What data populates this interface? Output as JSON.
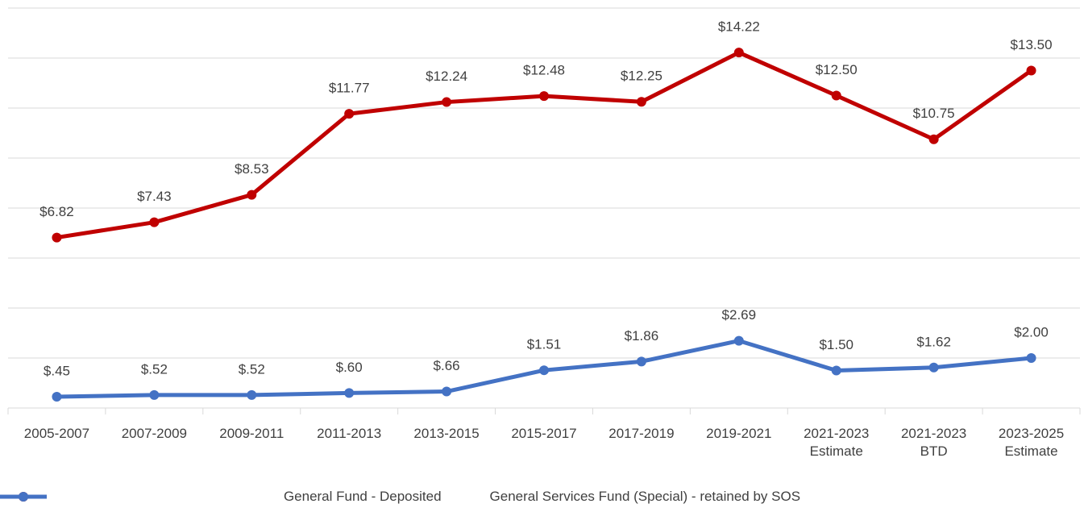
{
  "chart_data": {
    "type": "line",
    "categories": [
      "2005-2007",
      "2007-2009",
      "2009-2011",
      "2011-2013",
      "2013-2015",
      "2015-2017",
      "2017-2019",
      "2019-2021",
      "2021-2023 Estimate",
      "2021-2023 BTD",
      "2023-2025 Estimate"
    ],
    "series": [
      {
        "name": "General Fund - Deposited",
        "color": "#c00000",
        "values": [
          6.82,
          7.43,
          8.53,
          11.77,
          12.24,
          12.48,
          12.25,
          14.22,
          12.5,
          10.75,
          13.5
        ],
        "value_labels": [
          "$6.82",
          "$7.43",
          "$8.53",
          "$11.77",
          "$12.24",
          "$12.48",
          "$12.25",
          "$14.22",
          "$12.50",
          "$10.75",
          "$13.50"
        ]
      },
      {
        "name": "General Services Fund (Special) - retained by SOS",
        "color": "#4472c4",
        "values": [
          0.45,
          0.52,
          0.52,
          0.6,
          0.66,
          1.51,
          1.86,
          2.69,
          1.5,
          1.62,
          2.0
        ],
        "value_labels": [
          "$.45",
          "$.52",
          "$.52",
          "$.60",
          "$.66",
          "$1.51",
          "$1.86",
          "$2.69",
          "$1.50",
          "$1.62",
          "$2.00"
        ]
      }
    ],
    "ylim": [
      0,
      16
    ],
    "yticks": [
      0,
      2,
      4,
      6,
      8,
      10,
      12,
      14,
      16
    ],
    "grid": true,
    "legend": "bottom"
  }
}
